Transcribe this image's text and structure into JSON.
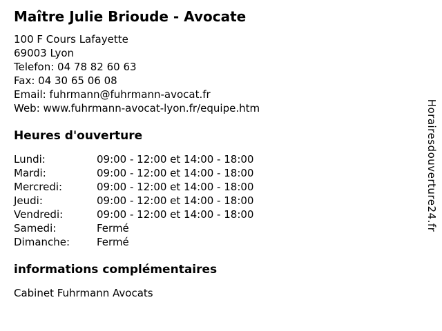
{
  "header": {
    "title": "Maître Julie Brioude - Avocate"
  },
  "contact": {
    "address_line1": "100 F Cours Lafayette",
    "address_line2": "69003 Lyon",
    "phone_label": "Telefon:",
    "phone_value": "04 78 82 60 63",
    "fax_label": "Fax:",
    "fax_value": "04 30 65 06 08",
    "email_label": "Email:",
    "email_value": "fuhrmann@fuhrmann-avocat.fr",
    "web_label": "Web:",
    "web_value": "www.fuhrmann-avocat-lyon.fr/equipe.htm"
  },
  "hours": {
    "heading": "Heures d'ouverture",
    "rows": [
      {
        "day": "Lundi:",
        "time": "09:00 - 12:00 et 14:00 - 18:00"
      },
      {
        "day": "Mardi:",
        "time": "09:00 - 12:00 et 14:00 - 18:00"
      },
      {
        "day": "Mercredi:",
        "time": "09:00 - 12:00 et 14:00 - 18:00"
      },
      {
        "day": "Jeudi:",
        "time": "09:00 - 12:00 et 14:00 - 18:00"
      },
      {
        "day": "Vendredi:",
        "time": "09:00 - 12:00 et 14:00 - 18:00"
      },
      {
        "day": "Samedi:",
        "time": "Fermé"
      },
      {
        "day": "Dimanche:",
        "time": "Fermé"
      }
    ]
  },
  "info": {
    "heading": "informations complémentaires",
    "text": "Cabinet Fuhrmann Avocats"
  },
  "watermark": {
    "text": "Horairesdouverture24.fr"
  },
  "colors": {
    "background": "#ffffff",
    "text": "#000000"
  }
}
